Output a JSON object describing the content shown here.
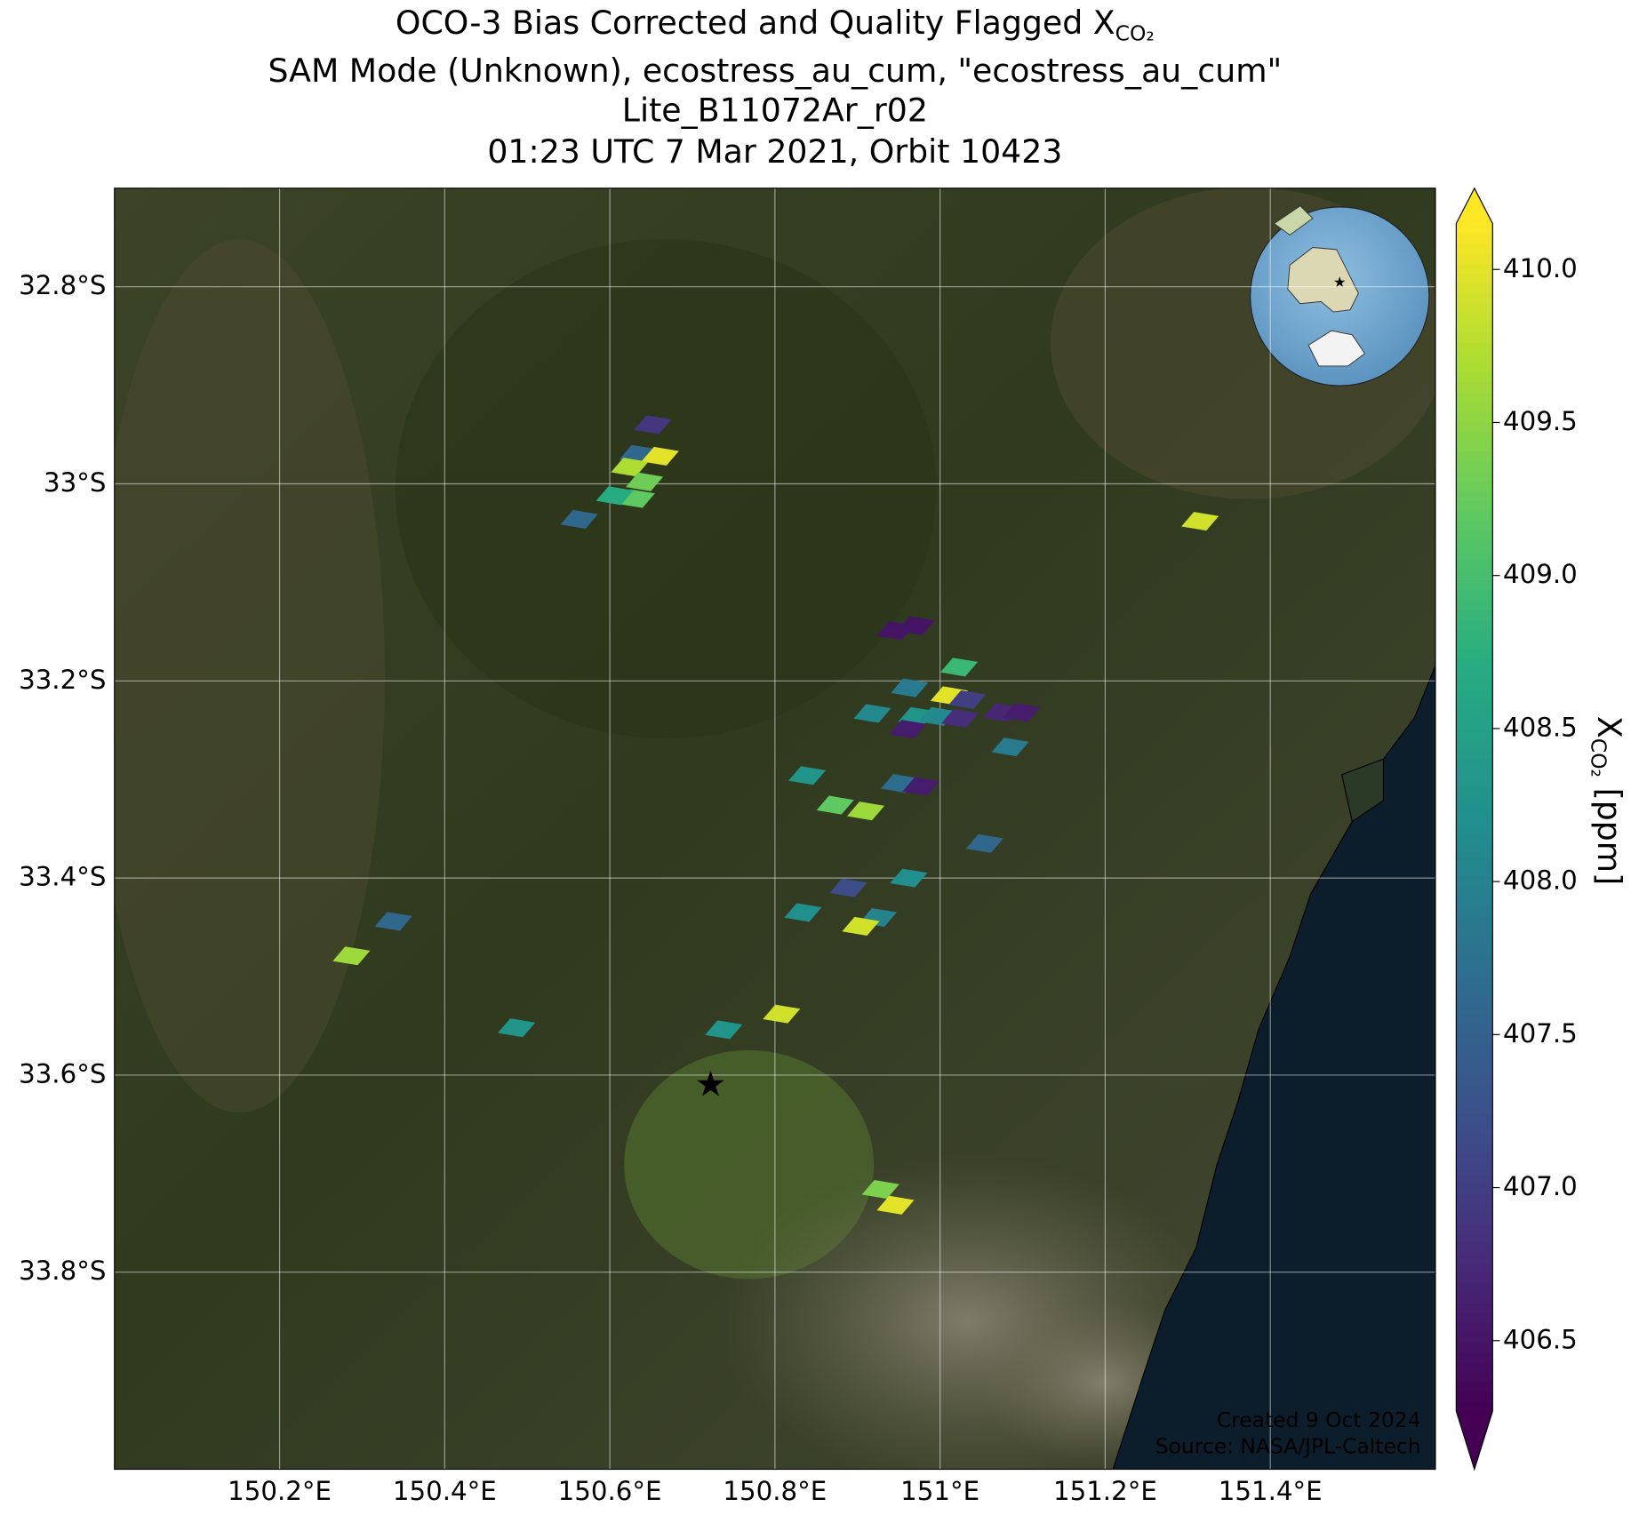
{
  "chart_data": {
    "type": "map",
    "title": [
      "OCO-3 Bias Corrected and Quality Flagged X",
      "SAM Mode (Unknown), ecostress_au_cum, \"ecostress_au_cum\"",
      "Lite_B11072Ar_r02",
      "01:23 UTC 7 Mar 2021, Orbit 10423"
    ],
    "title_subscript": "CO₂",
    "xlim": [
      150.0,
      151.6
    ],
    "ylim": [
      -34.0,
      -32.7
    ],
    "xticks": [
      {
        "value": 150.2,
        "label": "150.2°E"
      },
      {
        "value": 150.4,
        "label": "150.4°E"
      },
      {
        "value": 150.6,
        "label": "150.6°E"
      },
      {
        "value": 150.8,
        "label": "150.8°E"
      },
      {
        "value": 151.0,
        "label": "151°E"
      },
      {
        "value": 151.2,
        "label": "151.2°E"
      },
      {
        "value": 151.4,
        "label": "151.4°E"
      }
    ],
    "yticks": [
      {
        "value": -32.8,
        "label": "32.8°S"
      },
      {
        "value": -33.0,
        "label": "33°S"
      },
      {
        "value": -33.2,
        "label": "33.2°S"
      },
      {
        "value": -33.4,
        "label": "33.4°S"
      },
      {
        "value": -33.6,
        "label": "33.6°S"
      },
      {
        "value": -33.8,
        "label": "33.8°S"
      }
    ],
    "grid": true,
    "x": [
      150.652,
      150.634,
      150.661,
      150.624,
      150.642,
      150.632,
      150.606,
      150.563,
      151.315,
      150.946,
      150.971,
      151.023,
      150.963,
      151.011,
      151.033,
      150.918,
      150.972,
      150.997,
      151.024,
      151.075,
      151.099,
      150.961,
      151.085,
      150.839,
      150.951,
      150.977,
      150.873,
      150.91,
      151.054,
      150.962,
      150.889,
      150.834,
      150.925,
      150.904,
      150.338,
      150.287,
      150.487,
      150.808,
      150.738,
      150.928,
      150.946
    ],
    "y": [
      -32.94,
      -32.97,
      -32.972,
      -32.983,
      -32.998,
      -33.015,
      -33.012,
      -33.036,
      -33.038,
      -33.149,
      -33.144,
      -33.186,
      -33.207,
      -33.215,
      -33.219,
      -33.233,
      -33.236,
      -33.236,
      -33.238,
      -33.232,
      -33.232,
      -33.249,
      -33.267,
      -33.296,
      -33.304,
      -33.307,
      -33.326,
      -33.332,
      -33.365,
      -33.4,
      -33.41,
      -33.435,
      -33.44,
      -33.449,
      -33.444,
      -33.479,
      -33.552,
      -33.538,
      -33.554,
      -33.716,
      -33.732
    ],
    "values": [
      406.9,
      407.6,
      410.0,
      409.7,
      409.3,
      409.2,
      408.7,
      407.6,
      409.9,
      406.5,
      406.5,
      408.9,
      407.9,
      410.0,
      407.0,
      408.1,
      408.3,
      408.1,
      406.8,
      406.7,
      406.6,
      406.6,
      407.9,
      408.3,
      407.7,
      406.6,
      409.2,
      409.6,
      407.6,
      408.2,
      407.2,
      408.2,
      408.0,
      409.9,
      407.6,
      409.6,
      408.3,
      409.9,
      408.3,
      409.4,
      410.0
    ],
    "target": {
      "x": 150.722,
      "y": -33.612,
      "color": "#ff0000"
    },
    "colormap": "viridis",
    "clim": [
      406.27,
      410.15
    ],
    "colorbar_extend": "both",
    "cticks": [
      406.5,
      {
        "value": 407.0,
        "label": "407.0"
      },
      407.5,
      {
        "value": 408.0,
        "label": "408.0"
      },
      408.5,
      {
        "value": 409.0,
        "label": "409.0"
      },
      409.5,
      {
        "value": 410.0,
        "label": "410.0"
      }
    ],
    "colorbar_label": {
      "symbol": "X",
      "subscript": "CO₂",
      "unit": "[ppm]"
    },
    "annotation": [
      "Created 9 Oct 2024",
      "Source: NASA/JPL-Caltech"
    ]
  }
}
